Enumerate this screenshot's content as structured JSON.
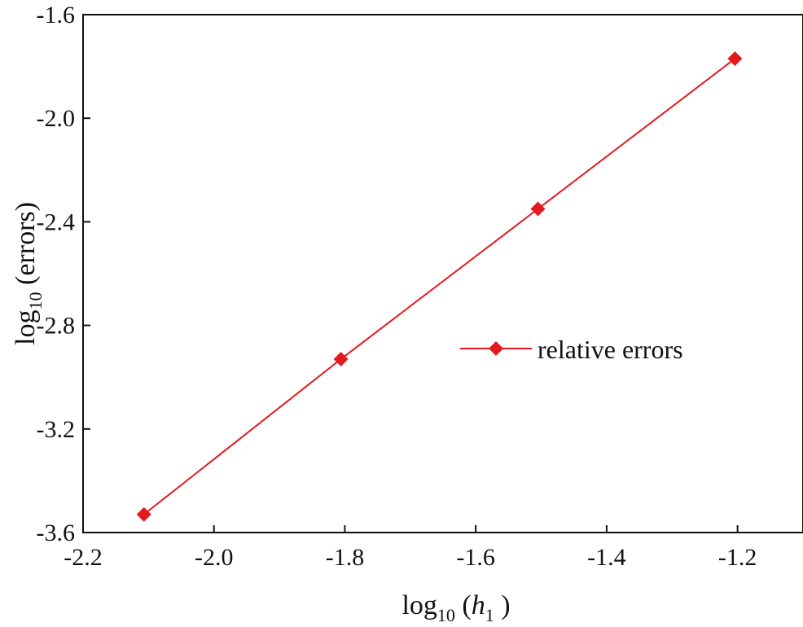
{
  "chart_data": {
    "type": "line",
    "xlabel": {
      "base": "log",
      "sub": "10",
      "open": " (",
      "var": "h",
      "var_sub": "1",
      "close": " )"
    },
    "ylabel": {
      "base": "log",
      "sub": "10",
      "rest": " (errors)"
    },
    "xlim": [
      -2.2,
      -1.1
    ],
    "ylim": [
      -3.6,
      -1.6
    ],
    "x_ticks": [
      -2.2,
      -2.0,
      -1.8,
      -1.6,
      -1.4,
      -1.2
    ],
    "y_ticks": [
      -3.6,
      -3.2,
      -2.8,
      -2.4,
      -2.0,
      -1.6
    ],
    "x_tick_labels": [
      "-2.2",
      "-2.0",
      "-1.8",
      "-1.6",
      "-1.4",
      "-1.2"
    ],
    "y_tick_labels": [
      "-3.6",
      "-3.2",
      "-2.8",
      "-2.4",
      "-2.0",
      "-1.6"
    ],
    "grid": false,
    "legend_position": "center-right",
    "series": [
      {
        "name": "relative errors",
        "color": "#e3191e",
        "marker": "diamond",
        "x": [
          -2.107,
          -1.806,
          -1.505,
          -1.204
        ],
        "y": [
          -3.53,
          -2.93,
          -2.35,
          -1.77
        ]
      }
    ]
  }
}
